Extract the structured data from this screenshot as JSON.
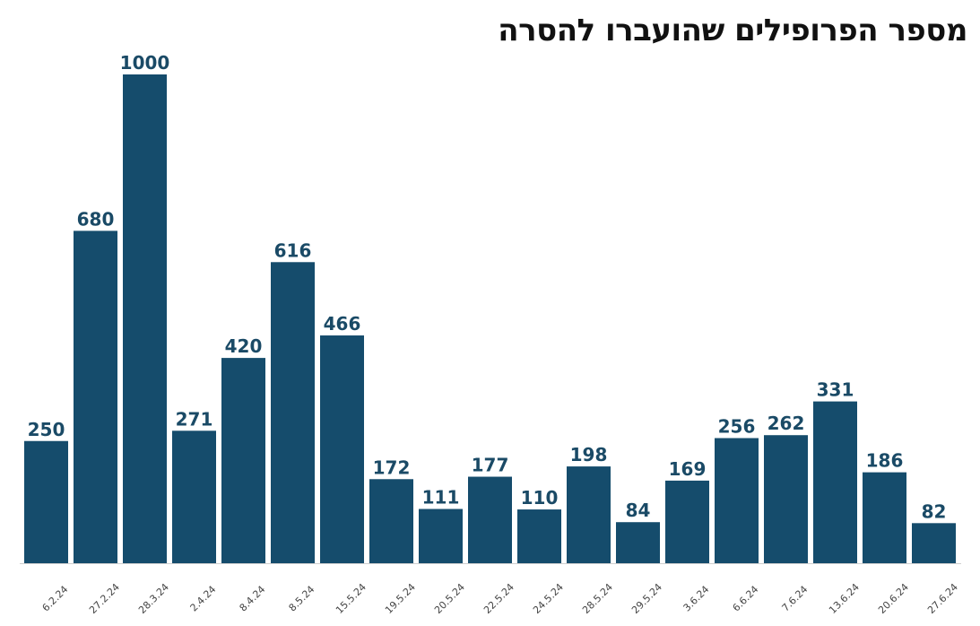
{
  "chart_data": {
    "type": "bar",
    "title": "מספר הפרופילים שהועברו להסרה",
    "categories": [
      "6.2.24",
      "27.2.24",
      "28.3.24",
      "2.4.24",
      "8.4.24",
      "8.5.24",
      "15.5.24",
      "19.5.24",
      "20.5.24",
      "22.5.24",
      "24.5.24",
      "28.5.24",
      "29.5.24",
      "3.6.24",
      "6.6.24",
      "7.6.24",
      "13.6.24",
      "20.6.24",
      "27.6.24"
    ],
    "values": [
      250,
      680,
      1000,
      271,
      420,
      616,
      466,
      172,
      111,
      177,
      110,
      198,
      84,
      169,
      256,
      262,
      331,
      186,
      82
    ],
    "xlabel": "",
    "ylabel": "",
    "ylim": [
      0,
      1000
    ],
    "grid": false,
    "legend": "none",
    "bar_color": "#154c6c",
    "label_color": "#1a4a66",
    "axis_color": "#cfcfcf"
  }
}
